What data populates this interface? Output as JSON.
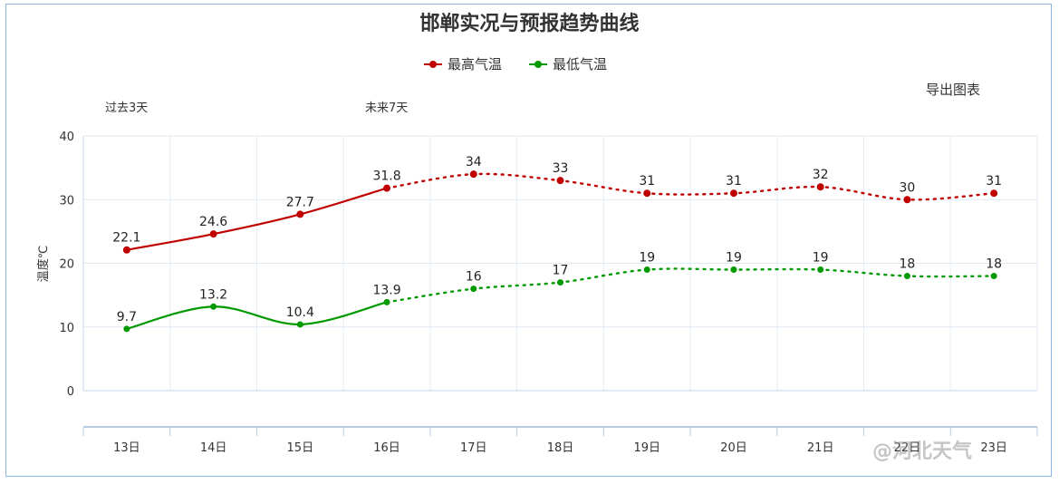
{
  "chart_data": {
    "type": "line",
    "title": "邯郸实况与预报趋势曲线",
    "categories": [
      "13日",
      "14日",
      "15日",
      "16日",
      "17日",
      "18日",
      "19日",
      "20日",
      "21日",
      "22日",
      "23日"
    ],
    "series": [
      {
        "name": "最高气温",
        "color": "#c00000",
        "values": [
          22.1,
          24.6,
          27.7,
          31.8,
          34,
          33,
          31,
          31,
          32,
          30,
          31
        ],
        "labels": [
          "22.1",
          "24.6",
          "27.7",
          "31.8",
          "34",
          "33",
          "31",
          "31",
          "32",
          "30",
          "31"
        ]
      },
      {
        "name": "最低气温",
        "color": "#009900",
        "values": [
          9.7,
          13.2,
          10.4,
          13.9,
          16,
          17,
          19,
          19,
          19,
          18,
          18
        ],
        "labels": [
          "9.7",
          "13.2",
          "10.4",
          "13.9",
          "16",
          "17",
          "19",
          "19",
          "19",
          "18",
          "18"
        ]
      }
    ],
    "observed_count": 4,
    "ylabel": "温度℃",
    "xlabel": "",
    "yticks": [
      "0",
      "10",
      "20",
      "30",
      "40"
    ],
    "ytick_values": [
      0,
      10,
      20,
      30,
      40
    ],
    "ylim": [
      0,
      40
    ],
    "grid": true,
    "legend": "top-center"
  },
  "periods": {
    "past": "过去3天",
    "future": "未来7天"
  },
  "export_label": "导出图表",
  "watermark": "@河北天气"
}
